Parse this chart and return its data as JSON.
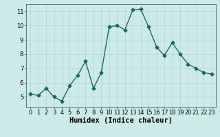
{
  "x": [
    0,
    1,
    2,
    3,
    4,
    5,
    6,
    7,
    8,
    9,
    10,
    11,
    12,
    13,
    14,
    15,
    16,
    17,
    18,
    19,
    20,
    21,
    22,
    23
  ],
  "y": [
    5.2,
    5.1,
    5.6,
    5.0,
    4.7,
    5.8,
    6.5,
    7.5,
    5.6,
    6.7,
    9.9,
    10.0,
    9.7,
    11.1,
    11.15,
    9.9,
    8.5,
    7.9,
    8.8,
    8.0,
    7.3,
    7.0,
    6.7,
    6.6
  ],
  "line_color": "#1a6b5a",
  "marker": "D",
  "marker_size": 2.5,
  "line_width": 1.0,
  "bg_color": "#cceae7",
  "grid_color": "#b8d8d5",
  "xlabel": "Humidex (Indice chaleur)",
  "ylim": [
    4.3,
    11.5
  ],
  "xlim": [
    -0.5,
    23.5
  ],
  "yticks": [
    5,
    6,
    7,
    8,
    9,
    10,
    11
  ],
  "xticks": [
    0,
    1,
    2,
    3,
    4,
    5,
    6,
    7,
    8,
    9,
    10,
    11,
    12,
    13,
    14,
    15,
    16,
    17,
    18,
    19,
    20,
    21,
    22,
    23
  ],
  "tick_fontsize": 6,
  "xlabel_fontsize": 7.5
}
